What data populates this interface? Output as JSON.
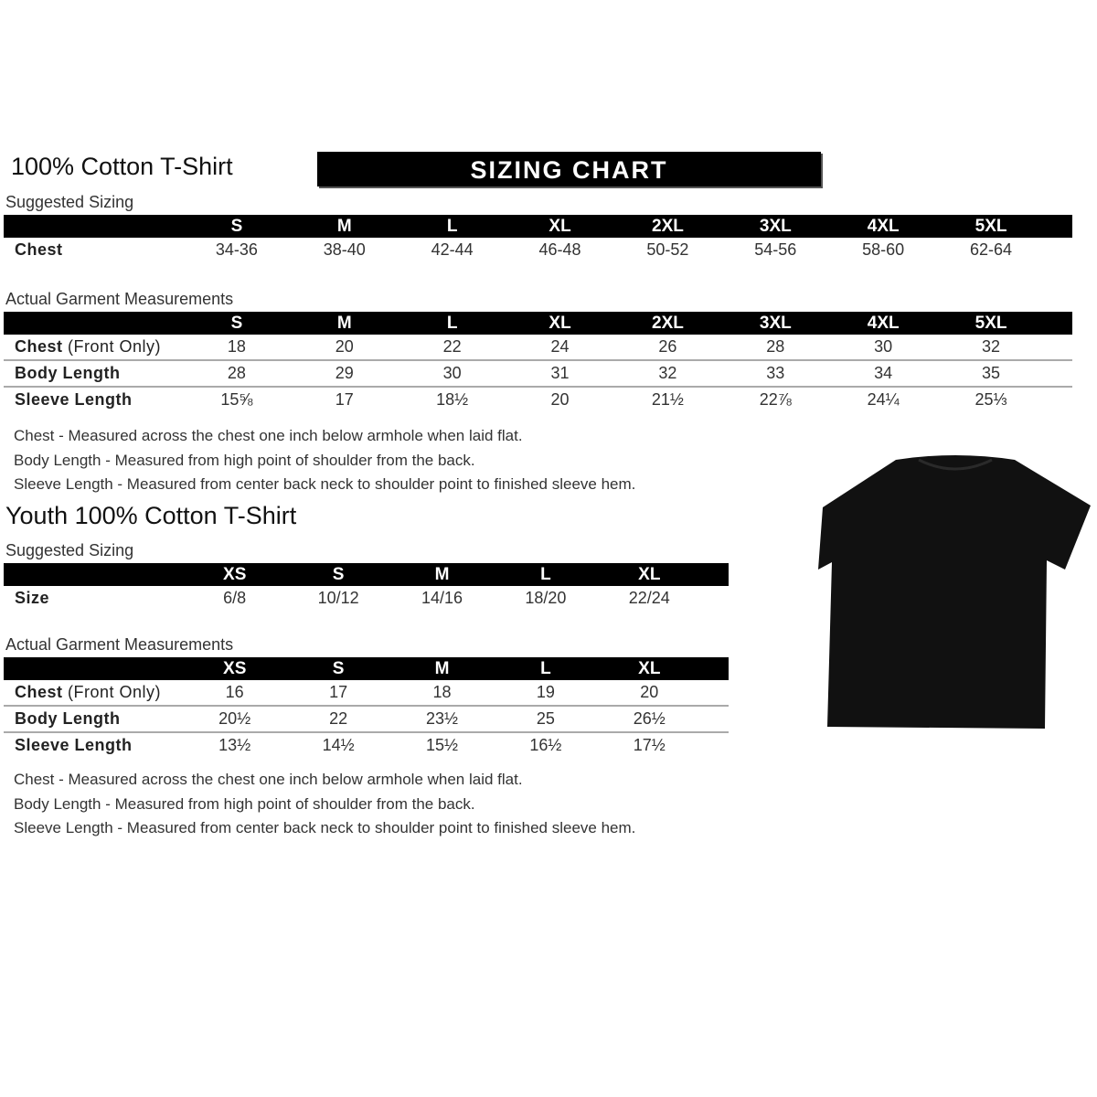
{
  "banner": "SIZING CHART",
  "adult": {
    "title": "100% Cotton T-Shirt",
    "suggested_label": "Suggested Sizing",
    "sizes": [
      "S",
      "M",
      "L",
      "XL",
      "2XL",
      "3XL",
      "4XL",
      "5XL"
    ],
    "suggested_row": {
      "label": "Chest",
      "values": [
        "34-36",
        "38-40",
        "42-44",
        "46-48",
        "50-52",
        "54-56",
        "58-60",
        "62-64"
      ]
    },
    "actual_label": "Actual Garment Measurements",
    "actual_rows": [
      {
        "label": "Chest",
        "label_note": "(Front Only)",
        "values": [
          "18",
          "20",
          "22",
          "24",
          "26",
          "28",
          "30",
          "32"
        ]
      },
      {
        "label": "Body Length",
        "label_note": "",
        "values": [
          "28",
          "29",
          "30",
          "31",
          "32",
          "33",
          "34",
          "35"
        ]
      },
      {
        "label": "Sleeve Length",
        "label_note": "",
        "values": [
          "15⅝",
          "17",
          "18½",
          "20",
          "21½",
          "22⅞",
          "24¼",
          "25⅓"
        ]
      }
    ],
    "notes": [
      "Chest - Measured across the chest one inch below armhole when laid flat.",
      "Body Length - Measured from high point of shoulder from the back.",
      "Sleeve Length - Measured from center back neck to shoulder point to finished sleeve hem."
    ]
  },
  "youth": {
    "title": "Youth 100% Cotton T-Shirt",
    "suggested_label": "Suggested Sizing",
    "sizes": [
      "XS",
      "S",
      "M",
      "L",
      "XL"
    ],
    "suggested_row": {
      "label": "Size",
      "values": [
        "6/8",
        "10/12",
        "14/16",
        "18/20",
        "22/24"
      ]
    },
    "actual_label": "Actual Garment Measurements",
    "actual_rows": [
      {
        "label": "Chest",
        "label_note": "(Front Only)",
        "values": [
          "16",
          "17",
          "18",
          "19",
          "20"
        ]
      },
      {
        "label": "Body Length",
        "label_note": "",
        "values": [
          "20½",
          "22",
          "23½",
          "25",
          "26½"
        ]
      },
      {
        "label": "Sleeve Length",
        "label_note": "",
        "values": [
          "13½",
          "14½",
          "15½",
          "16½",
          "17½"
        ]
      }
    ],
    "notes": [
      "Chest - Measured across the chest one inch below armhole when laid flat.",
      "Body Length - Measured from high point of shoulder from the back.",
      "Sleeve Length - Measured from center back neck to shoulder point to finished sleeve hem."
    ]
  },
  "image": {
    "icon": "black-tshirt-icon",
    "color": "#111111"
  }
}
